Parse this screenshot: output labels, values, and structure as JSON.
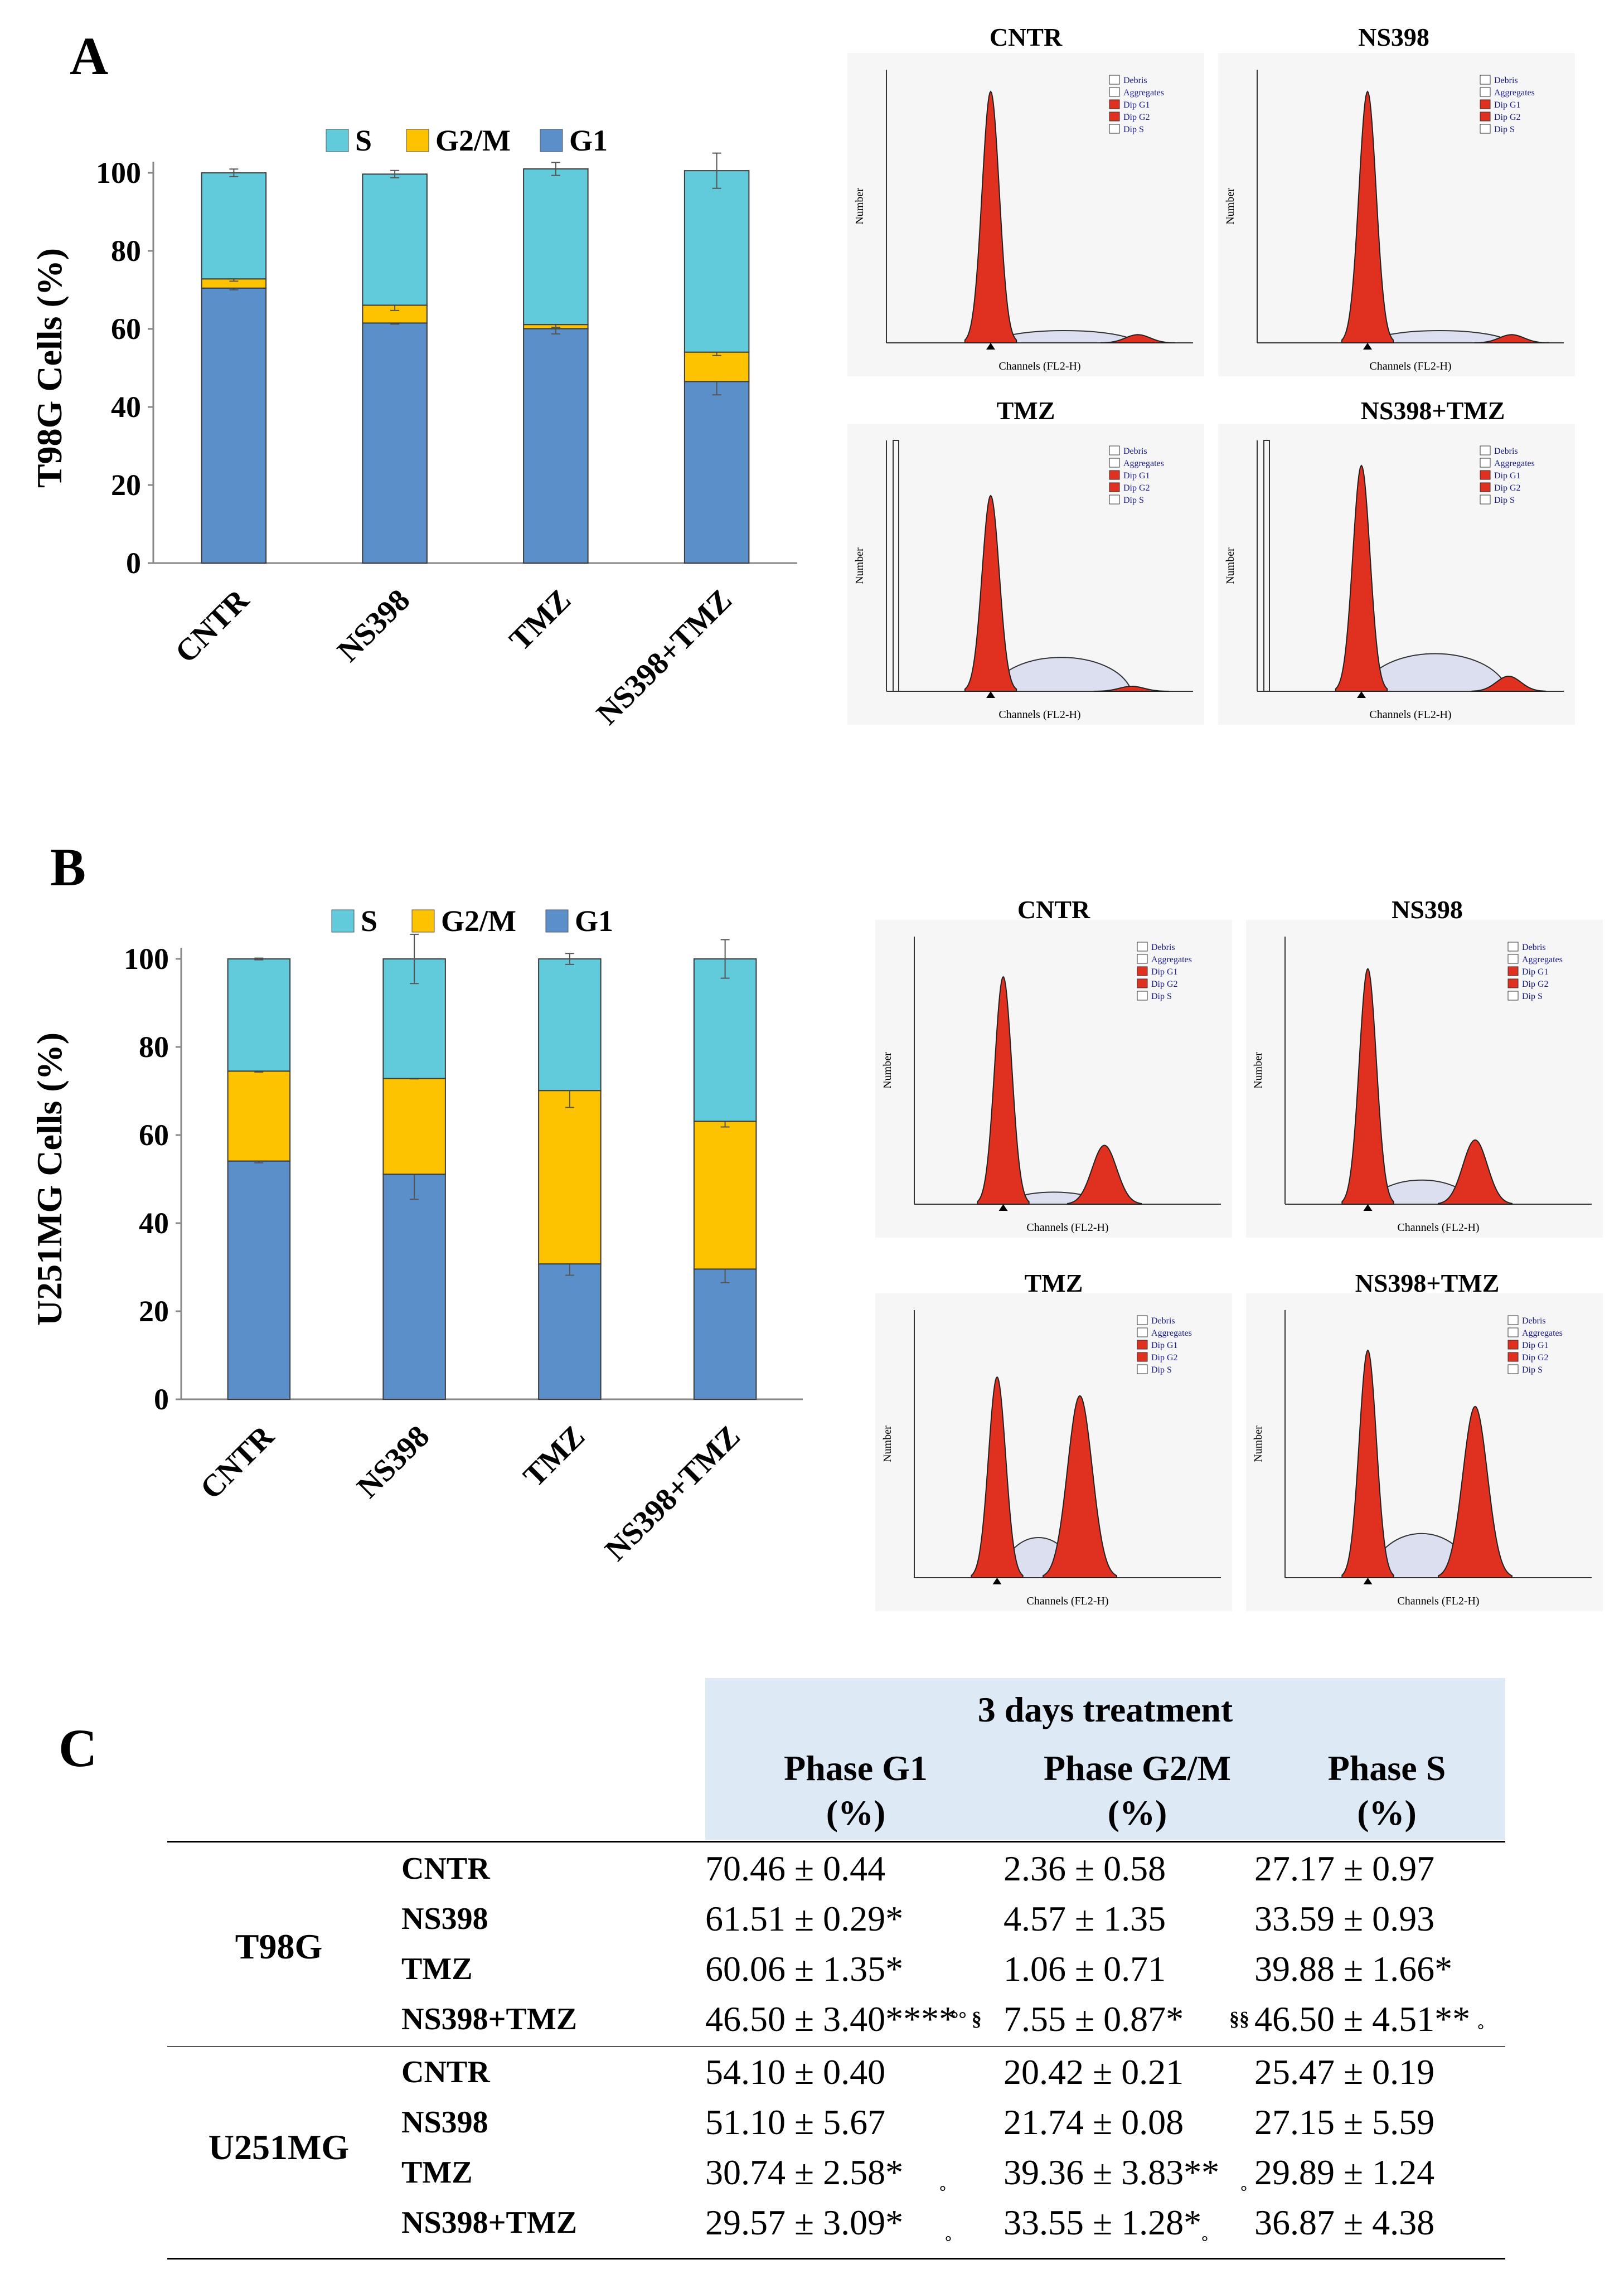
{
  "panels": {
    "A": {
      "letter": "A",
      "ylabel": "T98G Cells (%)",
      "flow_titles": [
        "CNTR",
        "NS398",
        "TMZ",
        "NS398+TMZ"
      ]
    },
    "B": {
      "letter": "B",
      "ylabel": "U251MG Cells (%)",
      "flow_titles": [
        "CNTR",
        "NS398",
        "TMZ",
        "NS398+TMZ"
      ]
    },
    "C": {
      "letter": "C"
    }
  },
  "flow_legend": [
    "Debris",
    "Aggregates",
    "Dip G1",
    "Dip G2",
    "Dip S"
  ],
  "flow_axis": {
    "xlabel": "Channels (FL2-H)",
    "ylabel": "Number"
  },
  "chart_data": [
    {
      "type": "bar",
      "stacked": true,
      "title": "T98G",
      "ylabel": "T98G Cells (%)",
      "categories": [
        "CNTR",
        "NS398",
        "TMZ",
        "NS398+TMZ"
      ],
      "ylim": [
        0,
        100
      ],
      "yticks": [
        "0",
        "20",
        "40",
        "60",
        "80",
        "100"
      ],
      "legend": [
        "S",
        "G2/M",
        "G1"
      ],
      "series": [
        {
          "name": "G1",
          "color": "#5b8fc9",
          "values": [
            70.46,
            61.51,
            60.06,
            46.5
          ],
          "errors": [
            0.44,
            0.29,
            1.35,
            3.4
          ]
        },
        {
          "name": "G2/M",
          "color": "#fdc300",
          "values": [
            2.36,
            4.57,
            1.06,
            7.55
          ],
          "errors": [
            0.58,
            1.35,
            0.71,
            0.87
          ]
        },
        {
          "name": "S",
          "color": "#61cbdc",
          "values": [
            27.17,
            33.59,
            39.88,
            46.5
          ],
          "errors": [
            0.97,
            0.93,
            1.66,
            4.51
          ]
        }
      ]
    },
    {
      "type": "bar",
      "stacked": true,
      "title": "U251MG",
      "ylabel": "U251MG Cells (%)",
      "categories": [
        "CNTR",
        "NS398",
        "TMZ",
        "NS398+TMZ"
      ],
      "ylim": [
        0,
        100
      ],
      "yticks": [
        "0",
        "20",
        "40",
        "60",
        "80",
        "100"
      ],
      "legend": [
        "S",
        "G2/M",
        "G1"
      ],
      "series": [
        {
          "name": "G1",
          "color": "#5b8fc9",
          "values": [
            54.1,
            51.1,
            30.74,
            29.57
          ],
          "errors": [
            0.4,
            5.67,
            2.58,
            3.09
          ]
        },
        {
          "name": "G2/M",
          "color": "#fdc300",
          "values": [
            20.42,
            21.74,
            39.36,
            33.55
          ],
          "errors": [
            0.21,
            0.08,
            3.83,
            1.28
          ]
        },
        {
          "name": "S",
          "color": "#61cbdc",
          "values": [
            25.47,
            27.15,
            29.89,
            36.87
          ],
          "errors": [
            0.19,
            5.59,
            1.24,
            4.38
          ]
        }
      ]
    },
    {
      "type": "table",
      "header_group": "3 days treatment",
      "columns": [
        {
          "line1": "Phase G1",
          "line2": "(%)"
        },
        {
          "line1": "Phase G2/M",
          "line2": "(%)"
        },
        {
          "line1": "Phase S",
          "line2": "(%)"
        }
      ],
      "groups": [
        {
          "name": "T98G",
          "rows": [
            {
              "label": "CNTR",
              "cells": [
                "70.46 ± 0.44",
                "2.36 ± 0.58",
                "27.17 ± 0.97"
              ]
            },
            {
              "label": "NS398",
              "cells": [
                "61.51 ± 0.29*",
                "4.57 ± 1.35",
                "33.59 ± 0.93"
              ]
            },
            {
              "label": "TMZ",
              "cells": [
                "60.06 ± 1.35*",
                "1.06 ± 0.71",
                "39.88 ± 1.66*"
              ]
            },
            {
              "label": "NS398+TMZ",
              "cells": [
                "46.50 ± 3.40****",
                "7.55 ± 0.87*",
                "46.50 ± 4.51**"
              ],
              "marks": [
                "°° §",
                "§§",
                "°"
              ]
            }
          ]
        },
        {
          "name": "U251MG",
          "rows": [
            {
              "label": "CNTR",
              "cells": [
                "54.10 ± 0.40",
                "20.42 ± 0.21",
                "25.47 ± 0.19"
              ]
            },
            {
              "label": "NS398",
              "cells": [
                "51.10 ± 5.67",
                "21.74 ± 0.08",
                "27.15 ± 5.59"
              ]
            },
            {
              "label": "TMZ",
              "cells": [
                "30.74 ± 2.58*",
                "39.36 ± 3.83**",
                "29.89 ± 1.24"
              ],
              "marks": [
                "°",
                "°",
                ""
              ]
            },
            {
              "label": "NS398+TMZ",
              "cells": [
                "29.57 ± 3.09*",
                "33.55 ± 1.28*",
                "36.87 ± 4.38"
              ],
              "marks": [
                "°",
                "°",
                ""
              ]
            }
          ]
        }
      ]
    }
  ]
}
